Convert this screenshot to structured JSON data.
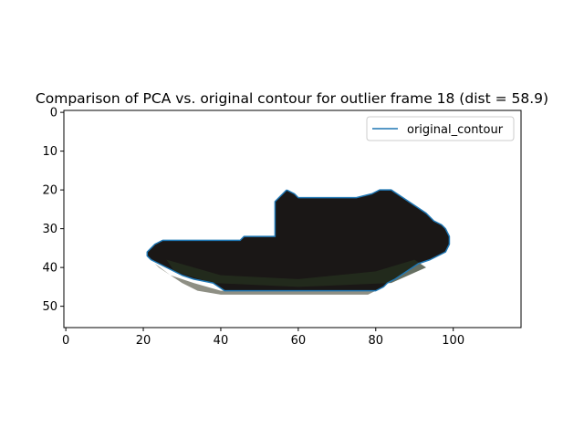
{
  "chart_data": {
    "type": "line",
    "title": "Comparison of PCA vs. original contour for outlier frame 18 (dist = 58.9)",
    "xlabel": "",
    "ylabel": "",
    "xlim": [
      -0.5,
      117.5
    ],
    "ylim": [
      55.5,
      -0.5
    ],
    "y_inverted": true,
    "grid": false,
    "legend_placement": "upper right",
    "x_ticks": [
      0,
      20,
      40,
      60,
      80,
      100
    ],
    "y_ticks": [
      0,
      10,
      20,
      30,
      40,
      50
    ],
    "background_image": "dark segmented object crop (grayscale image shown via imshow)",
    "series": [
      {
        "name": "original_contour",
        "color": "#1f77b4",
        "x": [
          57,
          55,
          54,
          54,
          46,
          45,
          25,
          23,
          22,
          21,
          21,
          22,
          24,
          26,
          28,
          30,
          33,
          38,
          41,
          50,
          60,
          70,
          80,
          82,
          83,
          85,
          88,
          91,
          94,
          96,
          98,
          99,
          99,
          98,
          97,
          95,
          93,
          90,
          87,
          84,
          81,
          79,
          75,
          70,
          65,
          62,
          60,
          59,
          57
        ],
        "y": [
          20,
          22,
          23,
          32,
          32,
          33,
          33,
          34,
          35,
          36,
          37,
          38,
          39,
          40,
          41,
          42,
          43,
          44,
          46,
          46,
          46,
          46,
          46,
          45,
          44,
          43,
          41,
          39,
          38,
          37,
          36,
          34,
          32,
          30,
          29,
          28,
          26,
          24,
          22,
          20,
          20,
          21,
          22,
          22,
          22,
          22,
          22,
          21,
          20
        ]
      }
    ]
  },
  "legend": {
    "entry": "original_contour"
  },
  "colors": {
    "line": "#1f77b4",
    "axes": "#000000",
    "legend_border": "#cccccc"
  }
}
